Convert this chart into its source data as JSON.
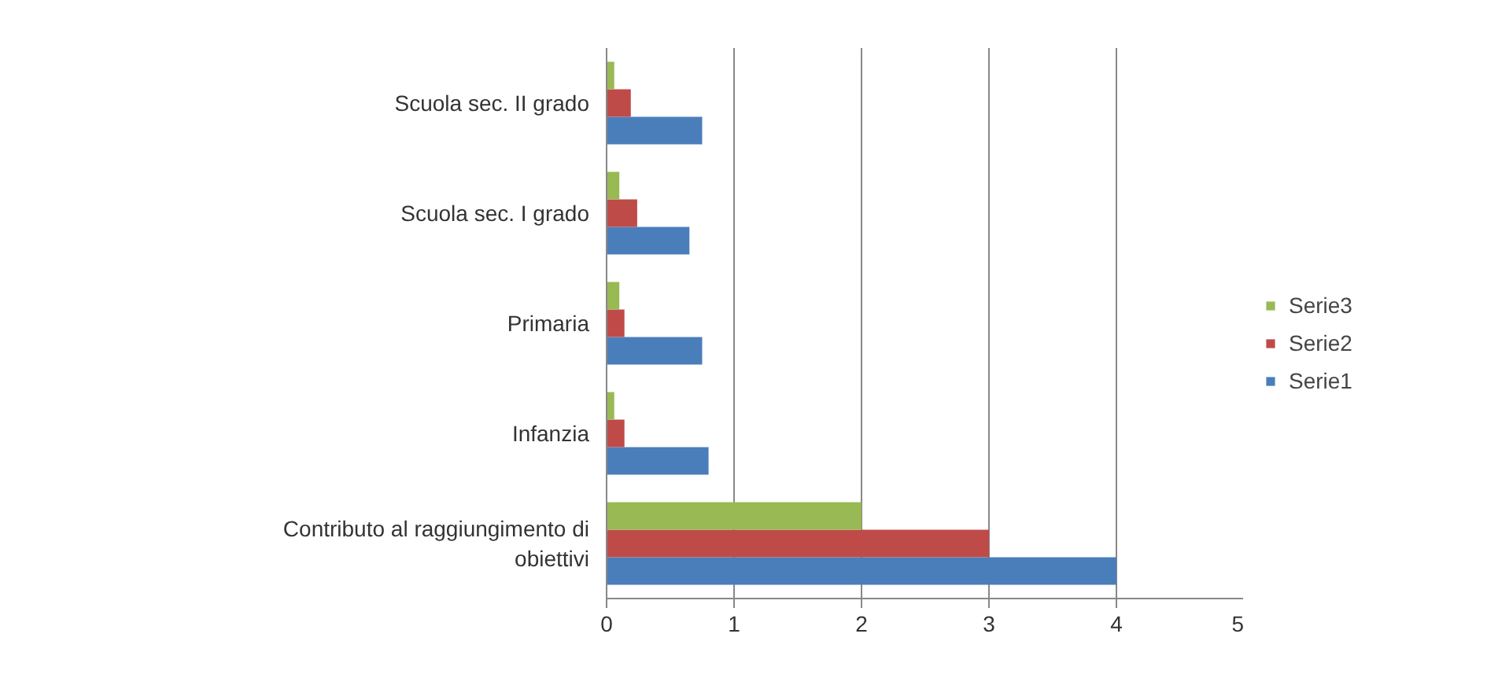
{
  "chart_data": {
    "type": "bar",
    "orientation": "horizontal",
    "categories": [
      "Scuola sec. II grado",
      "Scuola sec. I grado",
      "Primaria",
      "Infanzia",
      "Contributo al raggiungimento di obiettivi"
    ],
    "series": [
      {
        "name": "Serie1",
        "color": "#4a7ebb",
        "values": [
          0.75,
          0.65,
          0.75,
          0.8,
          4
        ]
      },
      {
        "name": "Serie2",
        "color": "#be4b48",
        "values": [
          0.19,
          0.24,
          0.14,
          0.14,
          3
        ]
      },
      {
        "name": "Serie3",
        "color": "#98b954",
        "values": [
          0.06,
          0.1,
          0.1,
          0.06,
          2
        ]
      }
    ],
    "xlim": [
      0,
      5
    ],
    "xticks": [
      0,
      1,
      2,
      3,
      4,
      5
    ],
    "grid": "x",
    "legend": "right"
  }
}
